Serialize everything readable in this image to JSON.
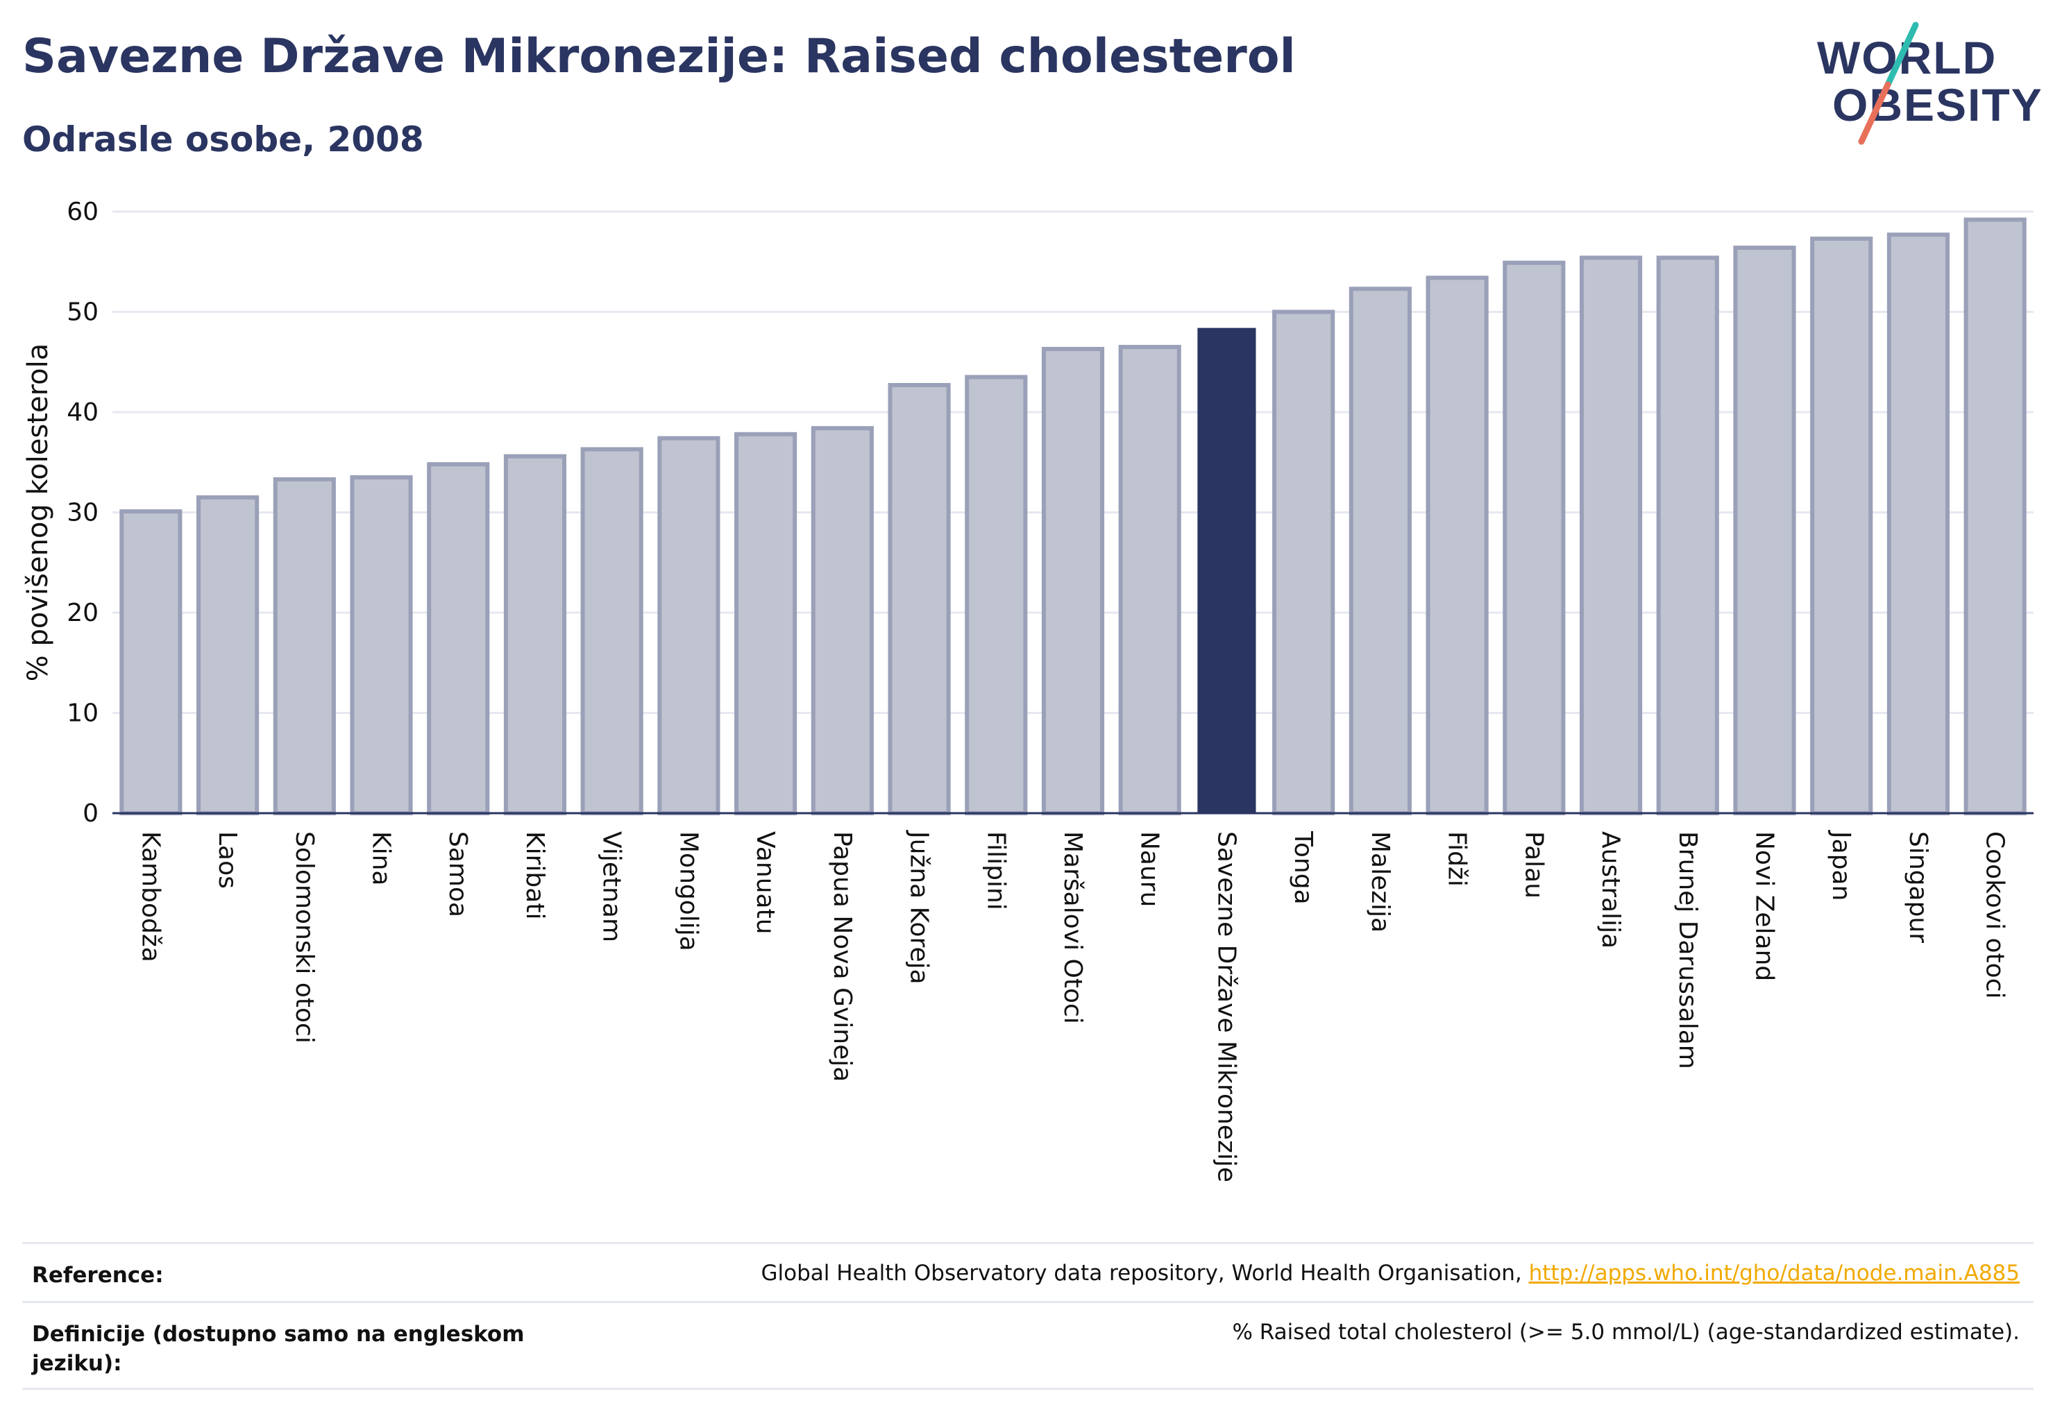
{
  "title": "Savezne Države Mikronezije: Raised cholesterol",
  "subtitle": "Odrasle osobe, 2008",
  "logo": {
    "line1": "WORLD",
    "line2": "OBESITY"
  },
  "colors": {
    "bar": "#c0c3d0",
    "bar_border": "#9aa0b8",
    "highlight": "#2b3561",
    "text": "#2b3561",
    "grid": "#e6e8f0",
    "link": "#f2a900"
  },
  "chart_data": {
    "type": "bar",
    "ylabel": "% povišenog kolesterola",
    "ylim": [
      0,
      60
    ],
    "yticks": [
      0,
      10,
      20,
      30,
      40,
      50,
      60
    ],
    "grid": true,
    "highlight": "Savezne Države Mikronezije",
    "categories": [
      "Kambodža",
      "Laos",
      "Solomonski otoci",
      "Kina",
      "Samoa",
      "Kiribati",
      "Vijetnam",
      "Mongolija",
      "Vanuatu",
      "Papua Nova Gvineja",
      "Južna Koreja",
      "Filipini",
      "Maršalovi Otoci",
      "Nauru",
      "Savezne Države Mikronezije",
      "Tonga",
      "Malezija",
      "Fidži",
      "Palau",
      "Australija",
      "Brunej Darussalam",
      "Novi Zeland",
      "Japan",
      "Singapur",
      "Cookovi otoci"
    ],
    "values": [
      30.1,
      31.5,
      33.3,
      33.5,
      34.8,
      35.6,
      36.3,
      37.4,
      37.8,
      38.4,
      42.7,
      43.5,
      46.3,
      46.5,
      48.4,
      50.0,
      52.3,
      53.4,
      54.9,
      55.4,
      55.4,
      56.4,
      57.3,
      57.7,
      59.2
    ]
  },
  "footer": {
    "reference_label": "Reference:",
    "reference_text": "Global Health Observatory data repository, World Health Organisation, ",
    "reference_link": "http://apps.who.int/gho/data/node.main.A885",
    "definition_label": "Definicije (dostupno samo na engleskom jeziku):",
    "definition_text": "% Raised total cholesterol (>= 5.0 mmol/L) (age-standardized estimate)."
  }
}
